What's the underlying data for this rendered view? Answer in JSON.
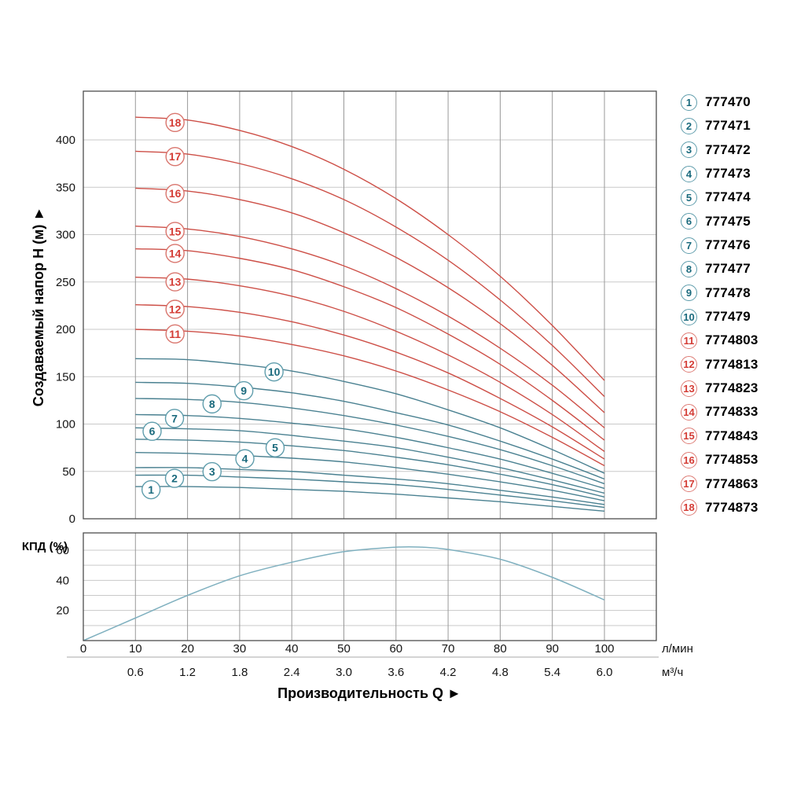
{
  "figure": {
    "y_axis_title": "Создаваемый напор H (м) ►",
    "x_axis_title": "Производительность Q ►",
    "efficiency_axis_label": "КПД (%)",
    "units": {
      "flow_lmin": "л/мин",
      "flow_m3h": "м³/ч"
    }
  },
  "colors": {
    "curve_blue": "#4a8191",
    "curve_red": "#cd4f47",
    "badge_stroke_blue": "#5f9dac",
    "badge_stroke_red": "#d9756d",
    "num_blue": "#1a6a7d",
    "num_red": "#d43c35",
    "grid_vertical": "#999999",
    "grid_horizontal": "#c9c9c9",
    "border": "#4d4d4d",
    "eff_curve": "#7fb0bf",
    "separator": "#aaaaaa",
    "text": "#141414"
  },
  "chart_data": [
    {
      "type": "line",
      "id": "head-curves",
      "ylabel": "Создаваемый напор H (м)",
      "xlabel": "Производительность Q",
      "x_units": [
        "л/мин",
        "м³/ч"
      ],
      "xlim": [
        0,
        110
      ],
      "ylim": [
        0,
        451
      ],
      "x_ticks_lmin": [
        0,
        10,
        20,
        30,
        40,
        50,
        60,
        70,
        80,
        90,
        100
      ],
      "x_ticks_m3h": [
        "0.6",
        "1.2",
        "1.8",
        "2.4",
        "3.0",
        "3.6",
        "4.2",
        "4.8",
        "5.4",
        "6.0"
      ],
      "y_ticks": [
        0,
        50,
        100,
        150,
        200,
        250,
        300,
        350,
        400
      ],
      "grid": true,
      "x": [
        10,
        20,
        30,
        40,
        50,
        60,
        70,
        80,
        90,
        100
      ],
      "series": [
        {
          "num": "1",
          "model": "777470",
          "group": "blue",
          "label_x": 13.0,
          "values": [
            34,
            34,
            33,
            31,
            29,
            26,
            22,
            18,
            13,
            8
          ]
        },
        {
          "num": "2",
          "model": "777471",
          "group": "blue",
          "label_x": 17.5,
          "values": [
            46,
            46,
            44,
            42,
            39,
            36,
            31,
            25,
            19,
            12
          ]
        },
        {
          "num": "3",
          "model": "777472",
          "group": "blue",
          "label_x": 24.7,
          "values": [
            54,
            54,
            52,
            50,
            46,
            42,
            37,
            30,
            23,
            15
          ]
        },
        {
          "num": "4",
          "model": "777473",
          "group": "blue",
          "label_x": 31.0,
          "values": [
            70,
            69,
            67,
            64,
            60,
            54,
            47,
            39,
            30,
            19
          ]
        },
        {
          "num": "5",
          "model": "777474",
          "group": "blue",
          "label_x": 36.8,
          "values": [
            84,
            83,
            81,
            77,
            72,
            65,
            57,
            47,
            36,
            23
          ]
        },
        {
          "num": "6",
          "model": "777475",
          "group": "blue",
          "label_x": 13.2,
          "values": [
            96,
            95,
            93,
            88,
            82,
            75,
            65,
            54,
            41,
            27
          ]
        },
        {
          "num": "7",
          "model": "777476",
          "group": "blue",
          "label_x": 17.5,
          "values": [
            110,
            109,
            106,
            101,
            95,
            86,
            75,
            63,
            48,
            32
          ]
        },
        {
          "num": "8",
          "model": "777477",
          "group": "blue",
          "label_x": 24.7,
          "values": [
            127,
            126,
            123,
            117,
            109,
            99,
            87,
            73,
            56,
            37
          ]
        },
        {
          "num": "9",
          "model": "777478",
          "group": "blue",
          "label_x": 30.8,
          "values": [
            144,
            143,
            139,
            133,
            124,
            112,
            99,
            82,
            63,
            42
          ]
        },
        {
          "num": "10",
          "model": "777479",
          "group": "blue",
          "label_x": 36.6,
          "values": [
            169,
            168,
            163,
            156,
            145,
            132,
            115,
            96,
            73,
            48
          ]
        },
        {
          "num": "11",
          "model": "7774803",
          "group": "red",
          "label_x": 17.6,
          "values": [
            200,
            198,
            193,
            184,
            172,
            156,
            136,
            113,
            86,
            56
          ]
        },
        {
          "num": "12",
          "model": "7774813",
          "group": "red",
          "label_x": 17.6,
          "values": [
            226,
            224,
            218,
            208,
            194,
            176,
            154,
            127,
            97,
            63
          ]
        },
        {
          "num": "13",
          "model": "7774823",
          "group": "red",
          "label_x": 17.6,
          "values": [
            255,
            253,
            246,
            235,
            219,
            198,
            173,
            144,
            110,
            71
          ]
        },
        {
          "num": "14",
          "model": "7774833",
          "group": "red",
          "label_x": 17.6,
          "values": [
            285,
            283,
            275,
            263,
            245,
            223,
            195,
            163,
            125,
            83
          ]
        },
        {
          "num": "15",
          "model": "7774843",
          "group": "red",
          "label_x": 17.6,
          "values": [
            309,
            306,
            298,
            285,
            267,
            243,
            214,
            180,
            141,
            96
          ]
        },
        {
          "num": "16",
          "model": "7774853",
          "group": "red",
          "label_x": 17.6,
          "values": [
            349,
            346,
            337,
            323,
            302,
            276,
            244,
            206,
            162,
            112
          ]
        },
        {
          "num": "17",
          "model": "7774863",
          "group": "red",
          "label_x": 17.6,
          "values": [
            388,
            385,
            375,
            359,
            337,
            308,
            273,
            231,
            183,
            129
          ]
        },
        {
          "num": "18",
          "model": "7774873",
          "group": "red",
          "label_x": 17.6,
          "values": [
            424,
            421,
            410,
            393,
            369,
            338,
            300,
            256,
            204,
            146
          ]
        }
      ]
    },
    {
      "type": "line",
      "id": "efficiency",
      "ylabel": "КПД (%)",
      "xlim": [
        0,
        110
      ],
      "ylim": [
        0,
        71.5
      ],
      "y_ticks": [
        20,
        40,
        60
      ],
      "grid_y": [
        10,
        20,
        30,
        40,
        50,
        60
      ],
      "grid": true,
      "points": [
        [
          0,
          0
        ],
        [
          10,
          15
        ],
        [
          20,
          30
        ],
        [
          30,
          43
        ],
        [
          40,
          52
        ],
        [
          50,
          59
        ],
        [
          60,
          62
        ],
        [
          65,
          62
        ],
        [
          70,
          60.5
        ],
        [
          80,
          54
        ],
        [
          90,
          42
        ],
        [
          100,
          27
        ]
      ]
    }
  ],
  "legend": {
    "items": [
      {
        "num": "1",
        "model": "777470",
        "group": "blue"
      },
      {
        "num": "2",
        "model": "777471",
        "group": "blue"
      },
      {
        "num": "3",
        "model": "777472",
        "group": "blue"
      },
      {
        "num": "4",
        "model": "777473",
        "group": "blue"
      },
      {
        "num": "5",
        "model": "777474",
        "group": "blue"
      },
      {
        "num": "6",
        "model": "777475",
        "group": "blue"
      },
      {
        "num": "7",
        "model": "777476",
        "group": "blue"
      },
      {
        "num": "8",
        "model": "777477",
        "group": "blue"
      },
      {
        "num": "9",
        "model": "777478",
        "group": "blue"
      },
      {
        "num": "10",
        "model": "777479",
        "group": "blue"
      },
      {
        "num": "11",
        "model": "7774803",
        "group": "red"
      },
      {
        "num": "12",
        "model": "7774813",
        "group": "red"
      },
      {
        "num": "13",
        "model": "7774823",
        "group": "red"
      },
      {
        "num": "14",
        "model": "7774833",
        "group": "red"
      },
      {
        "num": "15",
        "model": "7774843",
        "group": "red"
      },
      {
        "num": "16",
        "model": "7774853",
        "group": "red"
      },
      {
        "num": "17",
        "model": "7774863",
        "group": "red"
      },
      {
        "num": "18",
        "model": "7774873",
        "group": "red"
      }
    ]
  }
}
